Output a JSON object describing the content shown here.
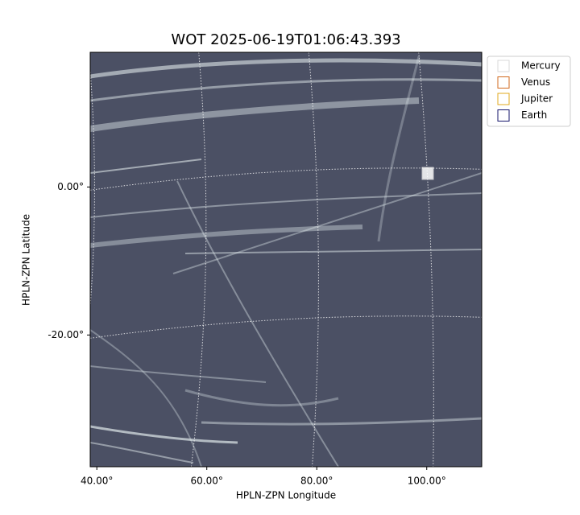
{
  "chart_data": {
    "type": "image",
    "title": "WOT 2025-06-19T01:06:43.393",
    "x_label": "HPLN-ZPN Longitude",
    "y_label": "HPLN-ZPN Latitude",
    "xlim": [
      38.8,
      110
    ],
    "ylim": [
      -37.8,
      18.2
    ],
    "xticks": [
      {
        "value": 40,
        "label": "40.00°"
      },
      {
        "value": 60,
        "label": "60.00°"
      },
      {
        "value": 80,
        "label": "80.00°"
      },
      {
        "value": 100,
        "label": "100.00°"
      }
    ],
    "yticks": [
      {
        "value": 0,
        "label": "0.00°"
      },
      {
        "value": -20,
        "label": "-20.00°"
      }
    ],
    "grid": true,
    "legend": "upper-right-outside",
    "series": [
      {
        "name": "Mercury",
        "color": "#d9d9d9"
      },
      {
        "name": "Venus",
        "color": "#d2691e"
      },
      {
        "name": "Jupiter",
        "color": "#e0a81c"
      },
      {
        "name": "Earth",
        "color": "#15156b"
      }
    ]
  }
}
